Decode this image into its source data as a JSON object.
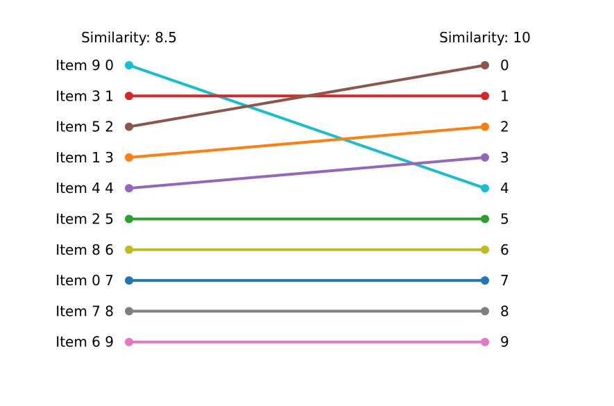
{
  "chart_data": {
    "type": "slope",
    "left_label": "Similarity: 8.5",
    "right_label": "Similarity: 10",
    "y_ticks": [
      "0",
      "1",
      "2",
      "3",
      "4",
      "5",
      "6",
      "7",
      "8",
      "9"
    ],
    "left_item_labels": [
      "Item 9",
      "Item 3",
      "Item 5",
      "Item 1",
      "Item 4",
      "Item 2",
      "Item 8",
      "Item 0",
      "Item 7",
      "Item 6"
    ],
    "series": [
      {
        "name": "Item 9",
        "left_rank": 0,
        "right_rank": 4,
        "color": "#17becf"
      },
      {
        "name": "Item 3",
        "left_rank": 1,
        "right_rank": 1,
        "color": "#d62728"
      },
      {
        "name": "Item 5",
        "left_rank": 2,
        "right_rank": 0,
        "color": "#8c564b"
      },
      {
        "name": "Item 1",
        "left_rank": 3,
        "right_rank": 2,
        "color": "#ff7f0e"
      },
      {
        "name": "Item 4",
        "left_rank": 4,
        "right_rank": 3,
        "color": "#9467bd"
      },
      {
        "name": "Item 2",
        "left_rank": 5,
        "right_rank": 5,
        "color": "#2ca02c"
      },
      {
        "name": "Item 8",
        "left_rank": 6,
        "right_rank": 6,
        "color": "#bcbd22"
      },
      {
        "name": "Item 0",
        "left_rank": 7,
        "right_rank": 7,
        "color": "#1f77b4"
      },
      {
        "name": "Item 7",
        "left_rank": 8,
        "right_rank": 8,
        "color": "#7f7f7f"
      },
      {
        "name": "Item 6",
        "left_rank": 9,
        "right_rank": 9,
        "color": "#e377c2"
      }
    ],
    "ylim": [
      0,
      9
    ],
    "y_inverted": true,
    "grid": false,
    "legend": "none"
  }
}
